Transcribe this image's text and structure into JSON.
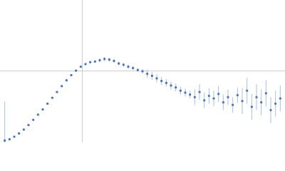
{
  "chart_data": {
    "type": "scatter",
    "xlim": [
      0,
      6
    ],
    "ylim": [
      0,
      2.2
    ],
    "xref": 1.732,
    "yref": 1.104,
    "color": "#4a72c0",
    "error_color": "#a9bde6",
    "ref_color": "#c8ccd4",
    "series": [
      {
        "color": "#4a72c0",
        "x": [
          0.1,
          0.2,
          0.3,
          0.4,
          0.5,
          0.6,
          0.7,
          0.8,
          0.9,
          1.0,
          1.1,
          1.2,
          1.3,
          1.4,
          1.5,
          1.6,
          1.7,
          1.8,
          1.9,
          2.0,
          2.1,
          2.2,
          2.3,
          2.4,
          2.5,
          2.6,
          2.7,
          2.8,
          2.9,
          3.0,
          3.1,
          3.2,
          3.3,
          3.4,
          3.5,
          3.6,
          3.7,
          3.8,
          3.9,
          4.0,
          4.1,
          4.2,
          4.3,
          4.4,
          4.5,
          4.6,
          4.7,
          4.8,
          4.9,
          5.0,
          5.1,
          5.2,
          5.3,
          5.4,
          5.5,
          5.6,
          5.7,
          5.8,
          5.9
        ],
        "values": [
          0.03,
          0.05,
          0.09,
          0.14,
          0.2,
          0.27,
          0.35,
          0.43,
          0.51,
          0.6,
          0.69,
          0.78,
          0.87,
          0.96,
          1.04,
          1.11,
          1.17,
          1.21,
          1.24,
          1.25,
          1.27,
          1.29,
          1.28,
          1.26,
          1.22,
          1.2,
          1.17,
          1.15,
          1.12,
          1.1,
          1.06,
          1.03,
          0.99,
          0.95,
          0.92,
          0.88,
          0.85,
          0.8,
          0.77,
          0.74,
          0.7,
          0.78,
          0.65,
          0.72,
          0.68,
          0.75,
          0.62,
          0.7,
          0.58,
          0.73,
          0.64,
          0.8,
          0.55,
          0.7,
          0.62,
          0.76,
          0.5,
          0.6,
          0.68
        ],
        "errors": [
          0.6,
          0.01,
          0.01,
          0.01,
          0.01,
          0.01,
          0.01,
          0.01,
          0.01,
          0.01,
          0.01,
          0.01,
          0.01,
          0.01,
          0.01,
          0.01,
          0.01,
          0.01,
          0.01,
          0.01,
          0.03,
          0.03,
          0.03,
          0.03,
          0.03,
          0.03,
          0.03,
          0.03,
          0.03,
          0.03,
          0.06,
          0.06,
          0.06,
          0.06,
          0.06,
          0.06,
          0.06,
          0.06,
          0.06,
          0.06,
          0.12,
          0.12,
          0.12,
          0.12,
          0.12,
          0.12,
          0.12,
          0.12,
          0.12,
          0.12,
          0.2,
          0.2,
          0.2,
          0.2,
          0.2,
          0.2,
          0.2,
          0.2,
          0.2
        ]
      }
    ]
  }
}
